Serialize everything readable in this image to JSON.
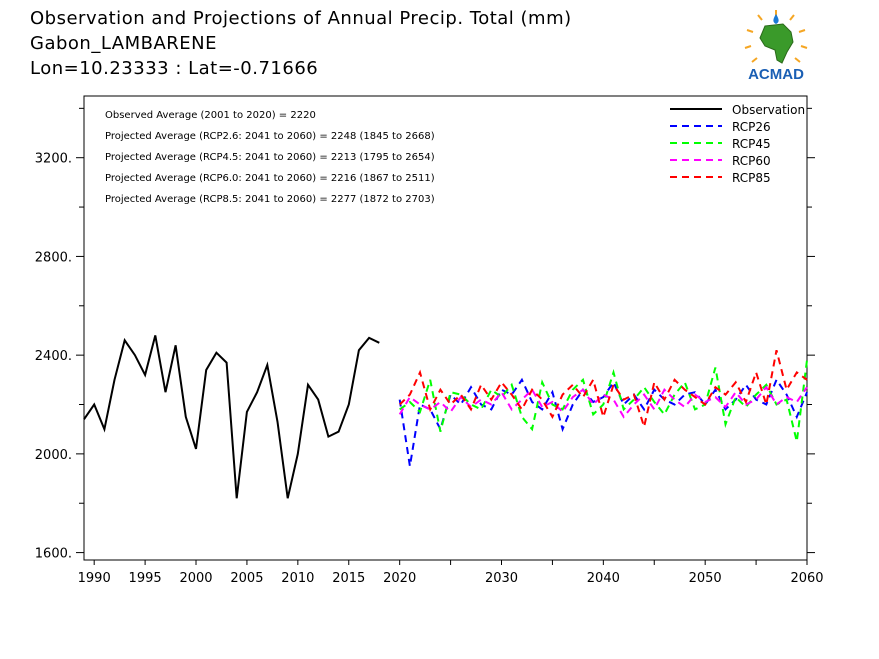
{
  "header": {
    "title": "Observation and Projections of Annual Precip. Total (mm)",
    "station": "Gabon_LAMBARENE",
    "coords": "Lon=10.23333 : Lat=-0.71666"
  },
  "logo": {
    "text": "ACMAD"
  },
  "colors": {
    "observation": "#000000",
    "RCP26": "#0000ff",
    "RCP45": "#00ff00",
    "RCP60": "#ff00ff",
    "RCP85": "#ff0000"
  },
  "chart_data": {
    "type": "line",
    "title": "Observation and Projections of Annual Precip. Total (mm)",
    "xlabel": "",
    "ylabel": "",
    "xlim": [
      1989,
      2060
    ],
    "ylim": [
      1570,
      3450
    ],
    "x_ticks": [
      1990,
      1995,
      2000,
      2005,
      2010,
      2015,
      2020,
      2030,
      2040,
      2050,
      2060
    ],
    "y_ticks": [
      1600,
      2000,
      2400,
      2800,
      3200
    ],
    "y_tick_labels": [
      "1600.",
      "2000.",
      "2400.",
      "2800.",
      "3200."
    ],
    "annotations": [
      "Observed Average (2001 to 2020) = 2220",
      "Projected Average (RCP2.6: 2041 to 2060) = 2248 (1845 to 2668)",
      "Projected Average (RCP4.5: 2041 to 2060) = 2213 (1795 to 2654)",
      "Projected Average (RCP6.0: 2041 to 2060) = 2216 (1867 to 2511)",
      "Projected Average (RCP8.5: 2041 to 2060) = 2277 (1872 to 2703)"
    ],
    "legend_position": "top-right",
    "observation": {
      "name": "Observation",
      "x": [
        1989,
        1990,
        1991,
        1992,
        1993,
        1994,
        1995,
        1996,
        1997,
        1998,
        1999,
        2000,
        2001,
        2002,
        2003,
        2004,
        2005,
        2006,
        2007,
        2008,
        2009,
        2010,
        2011,
        2012,
        2013,
        2014,
        2015,
        2016,
        2017,
        2018,
        2019,
        2020
      ],
      "values": [
        2140,
        2200,
        2100,
        2300,
        2460,
        2400,
        2320,
        2480,
        2250,
        2440,
        2150,
        2020,
        2340,
        2410,
        2370,
        1820,
        2170,
        2250,
        2360,
        2130,
        1820,
        2000,
        2280,
        2220,
        2070,
        2090,
        2200,
        2420,
        2470,
        2450,
        null,
        null
      ]
    },
    "series": [
      {
        "name": "RCP26",
        "x_start": 2020,
        "values": [
          2220,
          1950,
          2200,
          2180,
          2100,
          2240,
          2200,
          2270,
          2200,
          2180,
          2260,
          2240,
          2300,
          2210,
          2180,
          2250,
          2100,
          2200,
          2260,
          2210,
          2230,
          2290,
          2200,
          2240,
          2180,
          2260,
          2220,
          2200,
          2240,
          2250,
          2200,
          2260,
          2180,
          2220,
          2280,
          2220,
          2200,
          2300,
          2240,
          2150,
          2250
        ]
      },
      {
        "name": "RCP45",
        "x_start": 2020,
        "values": [
          2180,
          2210,
          2170,
          2300,
          2090,
          2250,
          2240,
          2200,
          2180,
          2260,
          2230,
          2280,
          2150,
          2100,
          2290,
          2200,
          2180,
          2260,
          2300,
          2160,
          2200,
          2330,
          2180,
          2220,
          2270,
          2210,
          2160,
          2240,
          2290,
          2180,
          2200,
          2350,
          2120,
          2230,
          2190,
          2240,
          2280,
          2200,
          2220,
          2050,
          2380
        ]
      },
      {
        "name": "RCP60",
        "x_start": 2020,
        "values": [
          2160,
          2230,
          2200,
          2180,
          2210,
          2170,
          2230,
          2190,
          2220,
          2200,
          2250,
          2180,
          2220,
          2260,
          2190,
          2210,
          2170,
          2230,
          2260,
          2200,
          2240,
          2220,
          2150,
          2200,
          2240,
          2180,
          2260,
          2220,
          2190,
          2240,
          2210,
          2230,
          2190,
          2250,
          2200,
          2220,
          2270,
          2200,
          2230,
          2210,
          2270
        ]
      },
      {
        "name": "RCP85",
        "x_start": 2020,
        "values": [
          2200,
          2240,
          2330,
          2180,
          2260,
          2200,
          2240,
          2180,
          2280,
          2220,
          2290,
          2240,
          2180,
          2260,
          2220,
          2150,
          2240,
          2280,
          2230,
          2300,
          2150,
          2280,
          2220,
          2240,
          2110,
          2290,
          2220,
          2300,
          2260,
          2230,
          2200,
          2270,
          2240,
          2290,
          2210,
          2330,
          2200,
          2420,
          2260,
          2330,
          2300
        ]
      }
    ]
  }
}
